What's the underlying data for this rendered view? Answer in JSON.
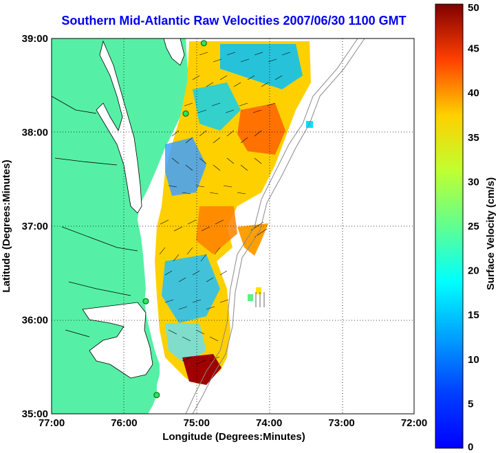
{
  "title": "Southern Mid-Atlantic Raw Velocities 2007/06/30 1100 GMT",
  "xlabel": "Longitude (Degrees:Minutes)",
  "ylabel": "Latitude (Degrees:Minutes)",
  "colorbar_label": "Surface Velocity (cm/s)",
  "x_ticks": [
    "77:00",
    "76:00",
    "75:00",
    "74:00",
    "73:00",
    "72:00"
  ],
  "y_ticks": [
    "39:00",
    "38:00",
    "37:00",
    "36:00",
    "35:00"
  ],
  "colorbar_ticks": [
    "50",
    "45",
    "40",
    "35",
    "30",
    "25",
    "20",
    "15",
    "10",
    "5",
    "0"
  ],
  "chart_data": {
    "type": "heatmap",
    "xlim": [
      -77,
      -72
    ],
    "ylim": [
      35,
      39
    ],
    "clim": [
      0,
      50
    ],
    "colormap": "jet",
    "land_color": "#55f0a6",
    "grid": true,
    "colorbar_position": "right",
    "station_markers": [
      {
        "lon": -74.9,
        "lat": 38.95
      },
      {
        "lon": -75.15,
        "lat": 38.2
      },
      {
        "lon": -75.7,
        "lat": 36.2
      },
      {
        "lon": -75.55,
        "lat": 35.2
      }
    ]
  }
}
